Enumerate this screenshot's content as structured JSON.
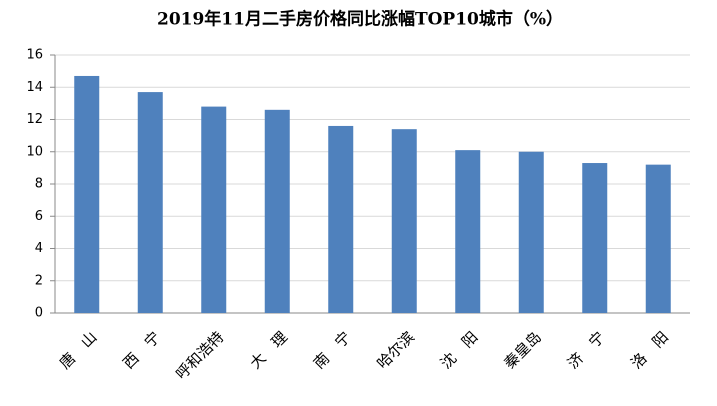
{
  "chart_data": {
    "type": "bar",
    "title": "2019年11月二手房价格同比涨幅TOP10城市（%）",
    "categories": [
      "唐　山",
      "西　宁",
      "呼和浩特",
      "大　理",
      "南　宁",
      "哈尔滨",
      "沈　阳",
      "秦皇岛",
      "济　宁",
      "洛　阳"
    ],
    "values": [
      14.7,
      13.7,
      12.8,
      12.6,
      11.6,
      11.4,
      10.1,
      10.0,
      9.3,
      9.2
    ],
    "color": "#4f81bd",
    "ylim": [
      0,
      16
    ],
    "yticks": [
      0,
      2,
      4,
      6,
      8,
      10,
      12,
      14,
      16
    ],
    "grid": true
  }
}
